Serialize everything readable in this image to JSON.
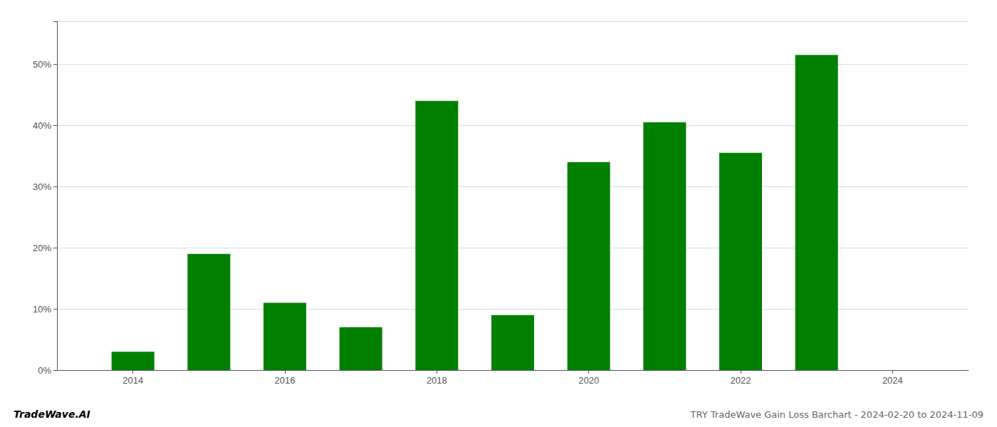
{
  "chart_data": {
    "type": "bar",
    "title": "TRY TradeWave Gain Loss Barchart - 2024-02-20 to 2024-11-09",
    "annotations": [
      "TradeWave.AI"
    ],
    "x": [
      2014,
      2015,
      2016,
      2017,
      2018,
      2019,
      2020,
      2021,
      2022,
      2023
    ],
    "values": [
      0.03,
      0.19,
      0.11,
      0.07,
      0.44,
      0.09,
      0.34,
      0.405,
      0.355,
      0.515
    ],
    "color": "#008000",
    "xlim": [
      2013.0,
      2025.0
    ],
    "xticks": [
      2014,
      2016,
      2018,
      2020,
      2022,
      2024
    ],
    "ylim": [
      0,
      0.57
    ],
    "yticks": [
      {
        "value": 0.0,
        "label": "0%"
      },
      {
        "value": 0.1,
        "label": "10%"
      },
      {
        "value": 0.2,
        "label": "20%"
      },
      {
        "value": 0.3,
        "label": "30%"
      },
      {
        "value": 0.4,
        "label": "40%"
      },
      {
        "value": 0.5,
        "label": "50%"
      }
    ],
    "grid": true
  }
}
